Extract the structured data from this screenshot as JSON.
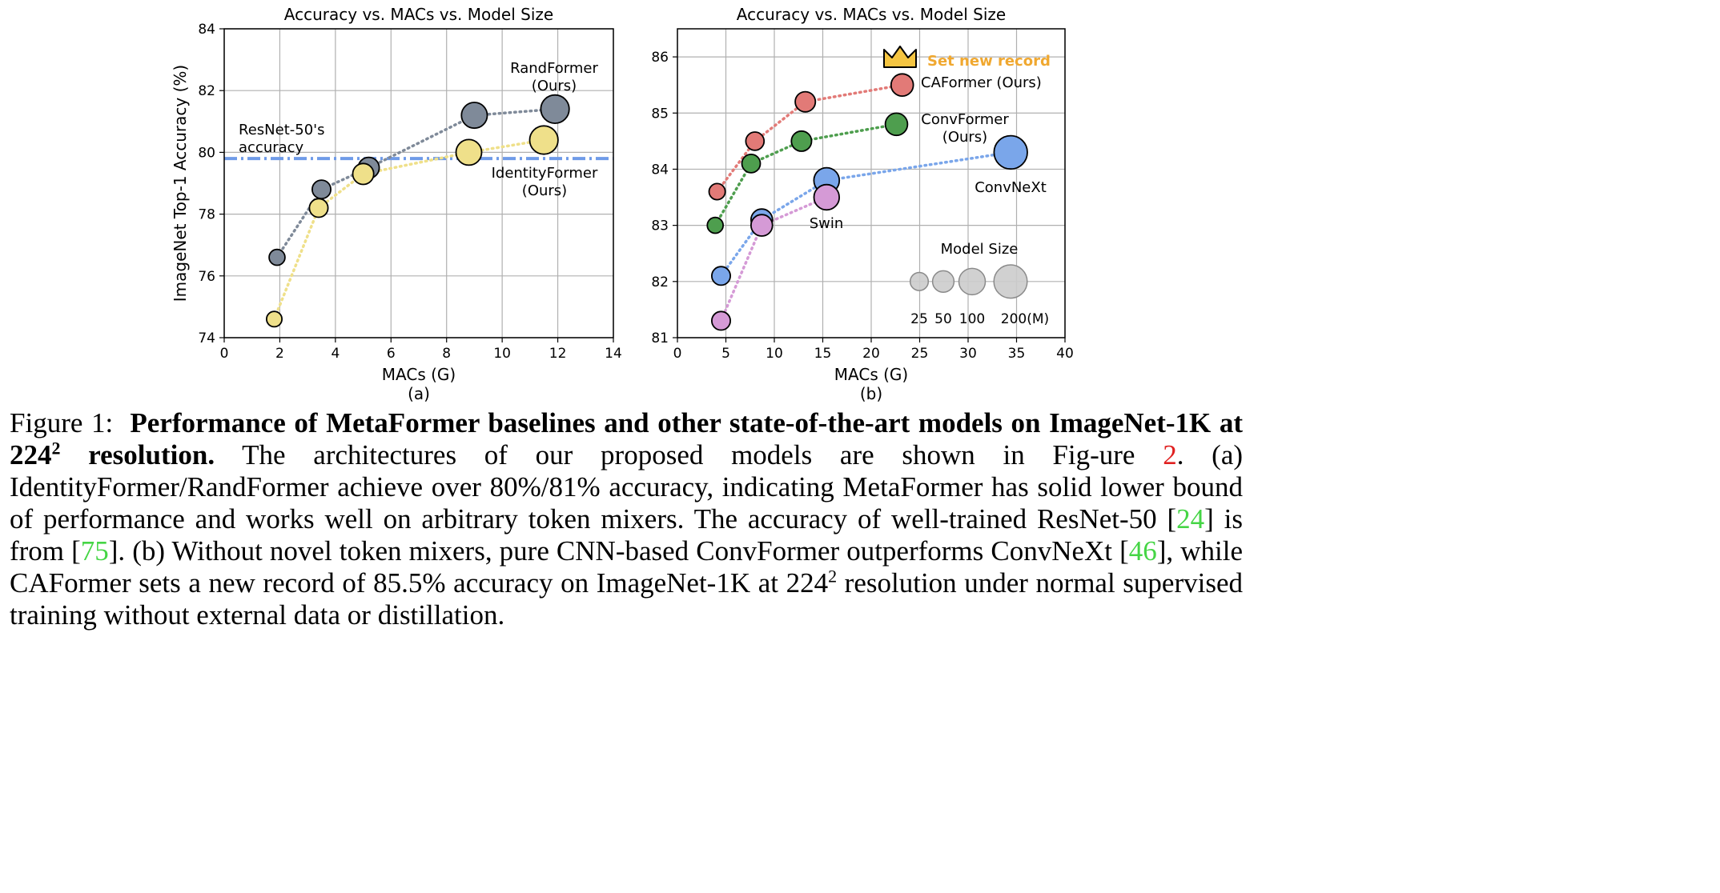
{
  "chart_data": [
    {
      "type": "scatter",
      "panel_label": "(a)",
      "title": "Accuracy vs. MACs vs. Model Size",
      "xlabel": "MACs (G)",
      "ylabel": "ImageNet Top-1 Accuracy (%)",
      "xlim": [
        0,
        14
      ],
      "ylim": [
        74,
        84
      ],
      "xticks": [
        "0",
        "2",
        "4",
        "6",
        "8",
        "10",
        "12",
        "14"
      ],
      "yticks": [
        "74",
        "76",
        "78",
        "80",
        "82",
        "84"
      ],
      "grid": true,
      "series": [
        {
          "name": "RandFormer (Ours)",
          "color": "#7f8a99",
          "points": [
            {
              "x": 1.9,
              "y": 76.6,
              "size_m": 12
            },
            {
              "x": 3.5,
              "y": 78.8,
              "size_m": 21
            },
            {
              "x": 5.2,
              "y": 79.5,
              "size_m": 31
            },
            {
              "x": 9.0,
              "y": 81.2,
              "size_m": 56
            },
            {
              "x": 11.9,
              "y": 81.4,
              "size_m": 73
            }
          ]
        },
        {
          "name": "IdentityFormer (Ours)",
          "color": "#efe08a",
          "points": [
            {
              "x": 1.8,
              "y": 74.6,
              "size_m": 11
            },
            {
              "x": 3.4,
              "y": 78.2,
              "size_m": 21
            },
            {
              "x": 5.0,
              "y": 79.3,
              "size_m": 31
            },
            {
              "x": 8.8,
              "y": 80.0,
              "size_m": 55
            },
            {
              "x": 11.5,
              "y": 80.4,
              "size_m": 72
            }
          ]
        }
      ],
      "reference_line": {
        "label": "ResNet-50's accuracy",
        "y": 79.8,
        "color": "#6f9be8"
      }
    },
    {
      "type": "scatter",
      "panel_label": "(b)",
      "title": "Accuracy vs. MACs vs. Model Size",
      "xlabel": "MACs (G)",
      "ylabel": "",
      "xlim": [
        0,
        40
      ],
      "ylim": [
        81,
        86.5
      ],
      "xticks": [
        "0",
        "5",
        "10",
        "15",
        "20",
        "25",
        "30",
        "35",
        "40"
      ],
      "yticks": [
        "81",
        "82",
        "83",
        "84",
        "85",
        "86"
      ],
      "grid": true,
      "series": [
        {
          "name": "CAFormer (Ours)",
          "color": "#e27a77",
          "points": [
            {
              "x": 4.1,
              "y": 83.6,
              "size_m": 15
            },
            {
              "x": 8.0,
              "y": 84.5,
              "size_m": 26
            },
            {
              "x": 13.2,
              "y": 85.2,
              "size_m": 39
            },
            {
              "x": 23.2,
              "y": 85.5,
              "size_m": 56
            }
          ]
        },
        {
          "name": "ConvFormer (Ours)",
          "color": "#4e9e4e",
          "points": [
            {
              "x": 3.9,
              "y": 83.0,
              "size_m": 14
            },
            {
              "x": 7.6,
              "y": 84.1,
              "size_m": 27
            },
            {
              "x": 12.8,
              "y": 84.5,
              "size_m": 40
            },
            {
              "x": 22.6,
              "y": 84.8,
              "size_m": 57
            }
          ]
        },
        {
          "name": "ConvNeXt",
          "color": "#7aa6ea",
          "points": [
            {
              "x": 4.5,
              "y": 82.1,
              "size_m": 28
            },
            {
              "x": 8.7,
              "y": 83.1,
              "size_m": 50
            },
            {
              "x": 15.4,
              "y": 83.8,
              "size_m": 89
            },
            {
              "x": 34.4,
              "y": 84.3,
              "size_m": 198
            }
          ]
        },
        {
          "name": "Swin",
          "color": "#d59ad6",
          "points": [
            {
              "x": 4.5,
              "y": 81.3,
              "size_m": 28
            },
            {
              "x": 8.7,
              "y": 83.0,
              "size_m": 50
            },
            {
              "x": 15.4,
              "y": 83.5,
              "size_m": 88
            }
          ]
        }
      ],
      "model_size_legend": {
        "title": "Model Size",
        "labels": [
          "25",
          "50",
          "100",
          "200(M)"
        ],
        "values": [
          25,
          50,
          100,
          200
        ],
        "color": "#cccccc"
      },
      "annotation": {
        "text": "Set new record",
        "color": "#f0a830",
        "icon": "crown-icon"
      }
    }
  ],
  "caption": {
    "figure_label": "Figure 1:",
    "bold_part1": "Performance of MetaFormer baselines and other state-of-the-art models on ImageNet-1K at ",
    "res_base": "224",
    "res_exp": "2",
    "bold_part2": " resolution.",
    "t1": " The architectures of our proposed models are shown in Fig-ure ",
    "ref_fig": "2",
    "t2": ". (a) IdentityFormer/RandFormer achieve over 80%/81% accuracy, indicating MetaFormer has solid lower bound of performance and works well on arbitrary token mixers. The accuracy of well-trained ResNet-50 [",
    "ref_24": "24",
    "t3": "] is from [",
    "ref_75": "75",
    "t4": "]. (b) Without novel token mixers, pure CNN-based ConvFormer outperforms ConvNeXt [",
    "ref_46": "46",
    "t5": "], while CAFormer sets a new record of 85.5% accuracy on ImageNet-1K at ",
    "res2_base": "224",
    "res2_exp": "2",
    "t6": " resolution under normal supervised training without external data or distillation."
  }
}
